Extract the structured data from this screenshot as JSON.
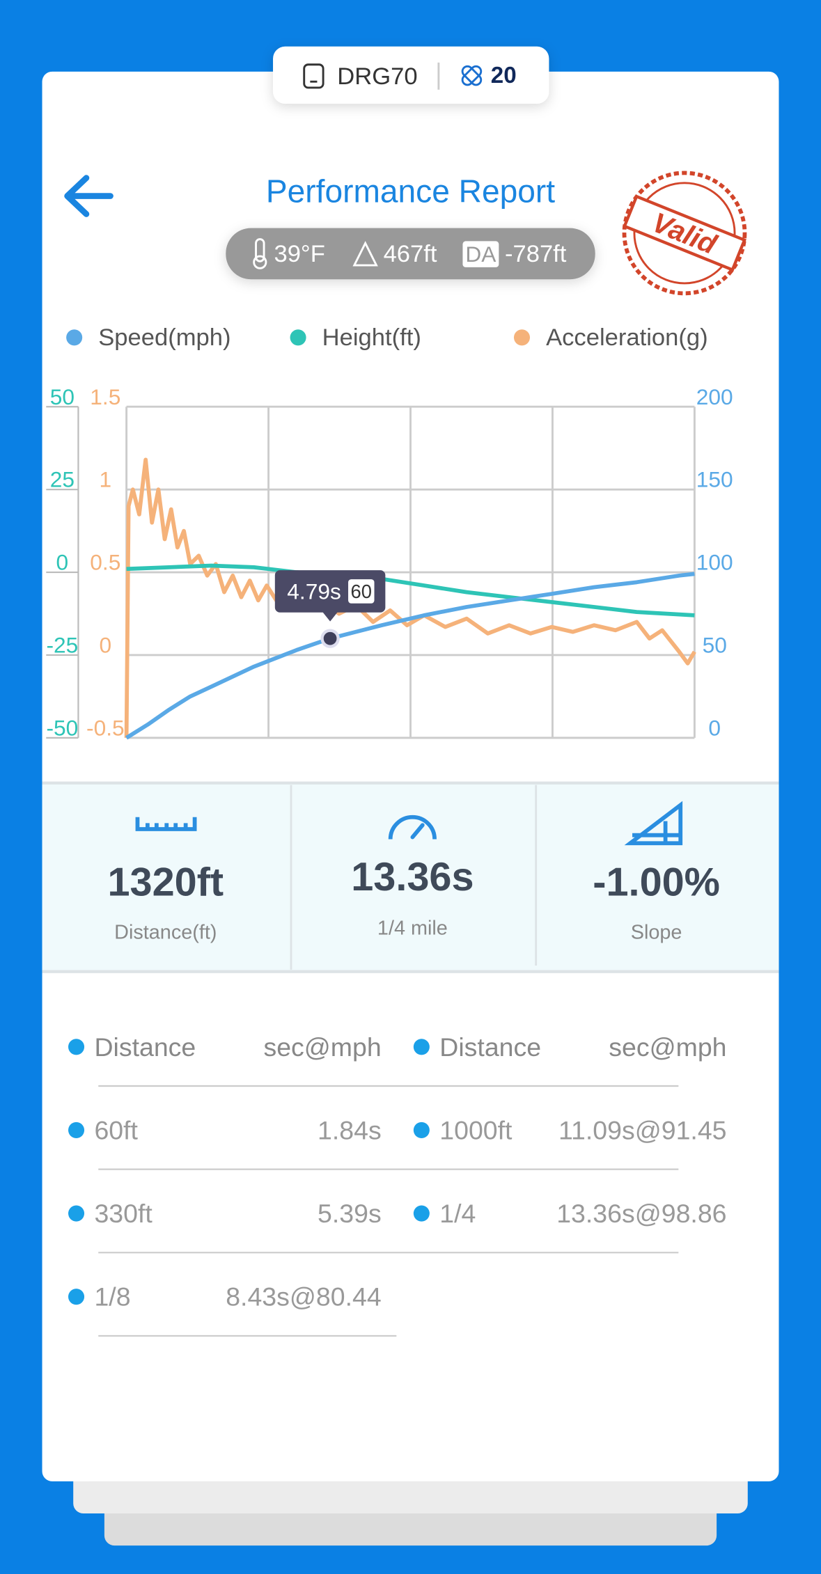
{
  "device": {
    "name": "DRG70",
    "count": 20
  },
  "header": {
    "title": "Performance Report",
    "stamp": "Valid"
  },
  "conditions": {
    "temperature": "39°F",
    "altitude": "467ft",
    "da_label": "DA",
    "density_altitude": "-787ft"
  },
  "chart_data": {
    "type": "line",
    "xlim": [
      0,
      13.36
    ],
    "series": [
      {
        "name": "Speed(mph)",
        "color": "#5aa9e6",
        "axis": "y2",
        "x": [
          0,
          0.5,
          1,
          1.5,
          2,
          3,
          4,
          4.79,
          6,
          7,
          8,
          9,
          10,
          11,
          12,
          13,
          13.36
        ],
        "values": [
          0,
          8,
          17,
          25,
          31,
          43,
          53,
          60,
          68,
          74,
          79,
          83,
          87,
          91,
          94,
          98,
          99
        ]
      },
      {
        "name": "Height(ft)",
        "color": "#2ec4b6",
        "axis": "y",
        "x": [
          0,
          1,
          2,
          3,
          4,
          5,
          6,
          7,
          8,
          9,
          10,
          11,
          12,
          13.36
        ],
        "values": [
          1,
          1.5,
          2,
          1.5,
          0,
          -1,
          -2,
          -4,
          -6,
          -7.5,
          -9,
          -10.5,
          -12,
          -13
        ]
      },
      {
        "name": "Acceleration(g)",
        "color": "#f5b27a",
        "axis": "y3",
        "x": [
          0,
          0.05,
          0.15,
          0.3,
          0.45,
          0.6,
          0.75,
          0.9,
          1.05,
          1.2,
          1.35,
          1.5,
          1.7,
          1.9,
          2.1,
          2.3,
          2.5,
          2.7,
          2.9,
          3.1,
          3.3,
          3.6,
          3.9,
          4.2,
          4.6,
          5,
          5.4,
          5.8,
          6.2,
          6.6,
          7,
          7.5,
          8,
          8.5,
          9,
          9.5,
          10,
          10.5,
          11,
          11.5,
          12,
          12.3,
          12.6,
          13,
          13.2,
          13.36
        ],
        "values": [
          -0.5,
          0.9,
          1.0,
          0.85,
          1.18,
          0.8,
          1.0,
          0.7,
          0.88,
          0.65,
          0.75,
          0.55,
          0.6,
          0.48,
          0.55,
          0.38,
          0.48,
          0.35,
          0.45,
          0.33,
          0.42,
          0.3,
          0.38,
          0.28,
          0.33,
          0.25,
          0.3,
          0.2,
          0.27,
          0.18,
          0.24,
          0.17,
          0.22,
          0.13,
          0.18,
          0.13,
          0.17,
          0.14,
          0.18,
          0.15,
          0.2,
          0.1,
          0.15,
          0.02,
          -0.05,
          0.02
        ]
      }
    ],
    "ylim": [
      -50,
      50
    ],
    "yticks": [
      -50,
      -25,
      0,
      25,
      50
    ],
    "y2lim": [
      0,
      200
    ],
    "y2ticks": [
      0,
      50,
      100,
      150,
      200
    ],
    "y3lim": [
      -0.5,
      1.5
    ],
    "y3ticks": [
      -0.5,
      0,
      0.5,
      1,
      1.5
    ],
    "grid": true,
    "tooltip": {
      "label": "4.79s",
      "value": 60
    }
  },
  "stats": [
    {
      "value": "1320ft",
      "label": "Distance(ft)"
    },
    {
      "value": "13.36s",
      "label": "1/4 mile"
    },
    {
      "value": "-1.00%",
      "label": "Slope"
    }
  ],
  "table": {
    "header": [
      "Distance",
      "sec@mph",
      "Distance",
      "sec@mph"
    ],
    "rows": [
      [
        "60ft",
        "1.84s",
        "1000ft",
        "11.09s@91.45"
      ],
      [
        "330ft",
        "5.39s",
        "1/4",
        "13.36s@98.86"
      ],
      [
        "1/8",
        "8.43s@80.44"
      ]
    ]
  }
}
